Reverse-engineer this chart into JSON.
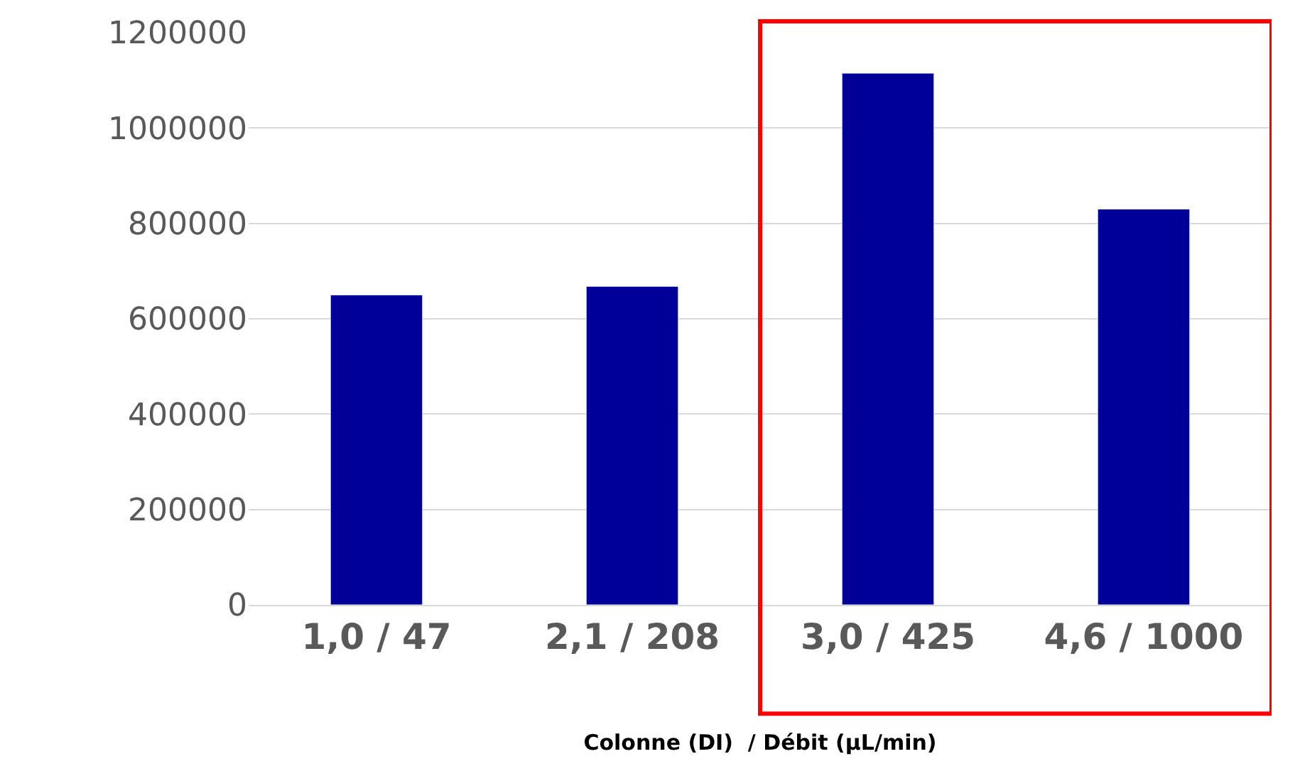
{
  "chart_data": {
    "type": "bar",
    "xlabel": "Colonne (DI)  / Débit (µL/min)",
    "categories": [
      "1,0 / 47",
      "2,1 / 208",
      "3,0 / 425",
      "4,6 / 1000"
    ],
    "values": [
      650000,
      668000,
      1115000,
      830000
    ],
    "color": "#000099",
    "ylim": [
      0,
      1200000
    ],
    "yticks": [
      0,
      200000,
      400000,
      600000,
      800000,
      1000000,
      1200000
    ],
    "grid": "y"
  }
}
